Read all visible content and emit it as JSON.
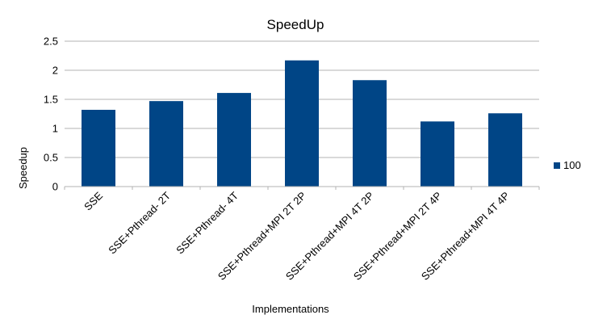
{
  "chart_data": {
    "type": "bar",
    "title": "SpeedUp",
    "xlabel": "Implementations",
    "ylabel": "Speedup",
    "categories": [
      "SSE",
      "SSE+Pthread- 2T",
      "SSE+Pthread- 4T",
      "SSE+Pthread+MPI 2T 2P",
      "SSE+Pthread+MPI 4T 2P",
      "SSE+Pthread+MPI 2T 4P",
      "SSE+Pthread+MPI 4T 4P"
    ],
    "series": [
      {
        "name": "100",
        "color": "#004586",
        "values": [
          1.32,
          1.47,
          1.61,
          2.17,
          1.83,
          1.12,
          1.26
        ]
      }
    ],
    "ylim": [
      0,
      2.5
    ],
    "yticks": [
      "0",
      "0.5",
      "1",
      "1.5",
      "2",
      "2.5"
    ],
    "grid": true,
    "legend_position": "right"
  }
}
